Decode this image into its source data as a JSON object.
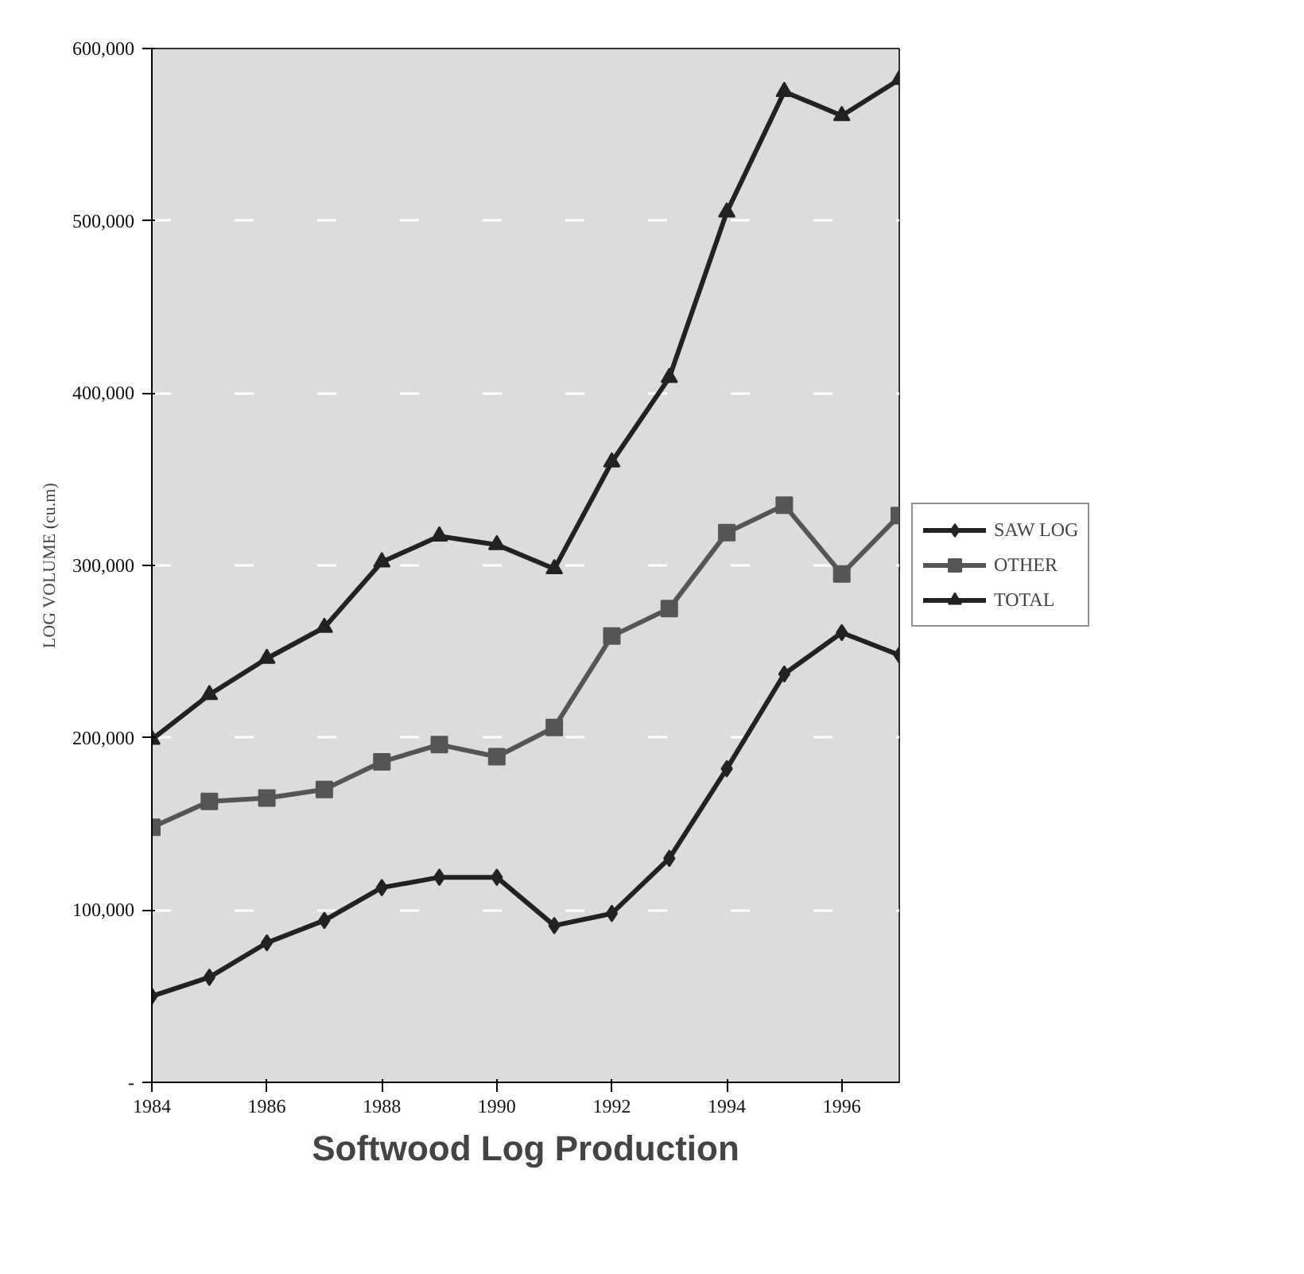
{
  "chart_data": {
    "type": "line",
    "title": "Softwood Log Production",
    "ylabel": "LOG VOLUME (cu.m)",
    "x": [
      1984,
      1985,
      1986,
      1987,
      1988,
      1989,
      1990,
      1991,
      1992,
      1993,
      1994,
      1995,
      1996,
      1997
    ],
    "series": [
      {
        "name": "SAW LOG",
        "color": "#222222",
        "marker": "diamond",
        "values": [
          50000,
          61000,
          81000,
          94000,
          113000,
          119000,
          119000,
          91000,
          98000,
          130000,
          182000,
          237000,
          261000,
          248000
        ]
      },
      {
        "name": "OTHER",
        "color": "#555555",
        "marker": "square",
        "values": [
          148000,
          163000,
          165000,
          170000,
          186000,
          196000,
          189000,
          206000,
          259000,
          275000,
          319000,
          335000,
          295000,
          329000
        ]
      },
      {
        "name": "TOTAL",
        "color": "#222222",
        "marker": "triangle",
        "values": [
          199000,
          225000,
          246000,
          264000,
          302000,
          317000,
          312000,
          298000,
          360000,
          409000,
          505000,
          575000,
          561000,
          582000
        ]
      }
    ],
    "xlim": [
      1984,
      1997
    ],
    "xticks": [
      1984,
      1986,
      1988,
      1990,
      1992,
      1994,
      1996
    ],
    "ylim": [
      0,
      600000
    ],
    "yticks": [
      {
        "value": 0,
        "label": "-"
      },
      {
        "value": 100000,
        "label": "100,000"
      },
      {
        "value": 200000,
        "label": "200,000"
      },
      {
        "value": 300000,
        "label": "300,000"
      },
      {
        "value": 400000,
        "label": "400,000"
      },
      {
        "value": 500000,
        "label": "500,000"
      },
      {
        "value": 600000,
        "label": "600,000"
      }
    ],
    "grid": "y",
    "legend": "right",
    "line_style": "solid"
  }
}
